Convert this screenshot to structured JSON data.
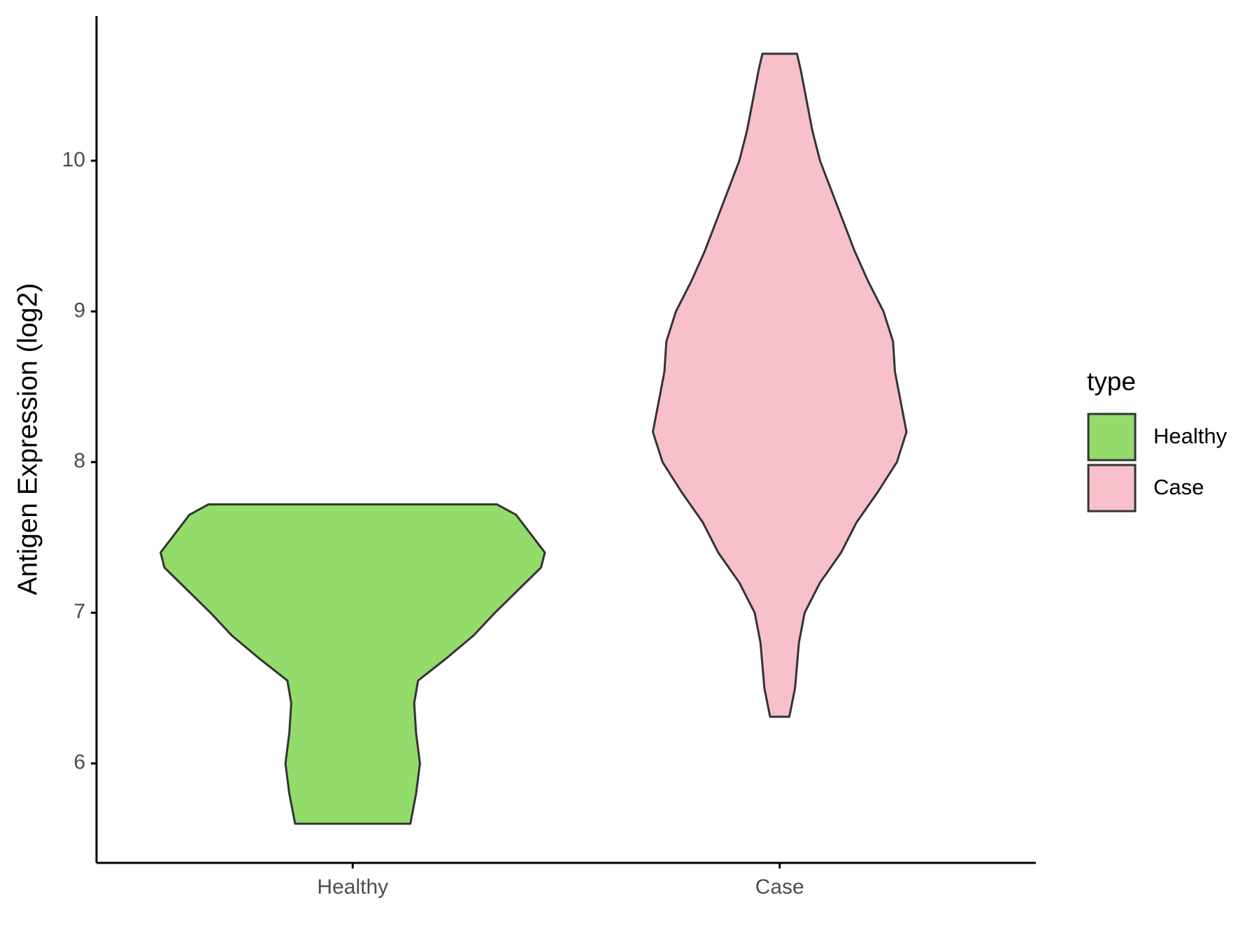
{
  "chart_data": {
    "type": "violin",
    "y_label": "Antigen Expression (log2)",
    "categories": [
      "Healthy",
      "Case"
    ],
    "series": [
      {
        "name": "Healthy",
        "color": "#93DB6A",
        "y": [
          5.6,
          5.8,
          6.0,
          6.2,
          6.4,
          6.55,
          6.7,
          6.85,
          7.0,
          7.15,
          7.3,
          7.4,
          7.55,
          7.65,
          7.72
        ],
        "density": [
          0.3,
          0.33,
          0.35,
          0.33,
          0.32,
          0.34,
          0.49,
          0.63,
          0.74,
          0.86,
          0.98,
          1.0,
          0.91,
          0.85,
          0.75
        ]
      },
      {
        "name": "Case",
        "color": "#F7C0CB",
        "y": [
          6.31,
          6.5,
          6.8,
          7.0,
          7.2,
          7.4,
          7.6,
          7.8,
          8.0,
          8.2,
          8.4,
          8.6,
          8.8,
          9.0,
          9.2,
          9.4,
          9.6,
          9.8,
          10.0,
          10.2,
          10.4,
          10.6,
          10.71
        ],
        "density": [
          0.05,
          0.08,
          0.1,
          0.13,
          0.21,
          0.32,
          0.4,
          0.51,
          0.61,
          0.66,
          0.63,
          0.6,
          0.59,
          0.54,
          0.46,
          0.39,
          0.33,
          0.27,
          0.21,
          0.17,
          0.14,
          0.11,
          0.09
        ]
      }
    ],
    "ylim": [
      5.34,
      10.96
    ],
    "yticks": [
      6,
      7,
      8,
      9,
      10
    ],
    "legend_title": "type",
    "legend": "right"
  }
}
